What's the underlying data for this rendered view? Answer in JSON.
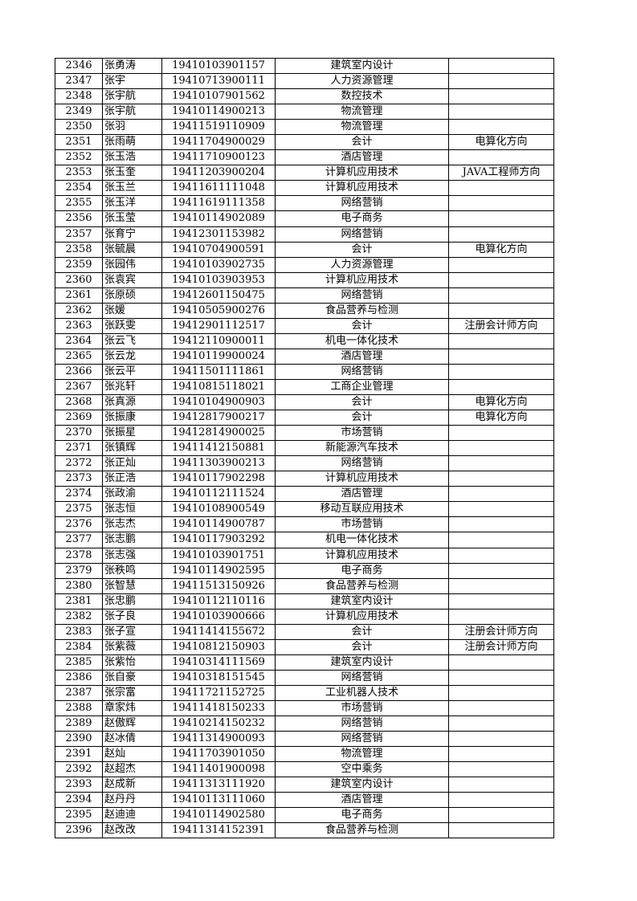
{
  "table": {
    "rows": [
      [
        "2346",
        "张勇涛",
        "19410103901157",
        "建筑室内设计",
        ""
      ],
      [
        "2347",
        "张宇",
        "19410713900111",
        "人力资源管理",
        ""
      ],
      [
        "2348",
        "张宇航",
        "19410107901562",
        "数控技术",
        ""
      ],
      [
        "2349",
        "张宇航",
        "19410114900213",
        "物流管理",
        ""
      ],
      [
        "2350",
        "张羽",
        "19411519110909",
        "物流管理",
        ""
      ],
      [
        "2351",
        "张雨萌",
        "19411704900029",
        "会计",
        "电算化方向"
      ],
      [
        "2352",
        "张玉浩",
        "19411710900123",
        "酒店管理",
        ""
      ],
      [
        "2353",
        "张玉奎",
        "19411203900204",
        "计算机应用技术",
        "JAVA工程师方向"
      ],
      [
        "2354",
        "张玉兰",
        "19411611111048",
        "计算机应用技术",
        ""
      ],
      [
        "2355",
        "张玉洋",
        "19411619111358",
        "网络营销",
        ""
      ],
      [
        "2356",
        "张玉莹",
        "19410114902089",
        "电子商务",
        ""
      ],
      [
        "2357",
        "张育宁",
        "19412301153982",
        "网络营销",
        ""
      ],
      [
        "2358",
        "张毓晨",
        "19410704900591",
        "会计",
        "电算化方向"
      ],
      [
        "2359",
        "张园伟",
        "19410103902735",
        "人力资源管理",
        ""
      ],
      [
        "2360",
        "张袁宾",
        "19410103903953",
        "计算机应用技术",
        ""
      ],
      [
        "2361",
        "张原硕",
        "19412601150475",
        "网络营销",
        ""
      ],
      [
        "2362",
        "张媛",
        "19410505900276",
        "食品营养与检测",
        ""
      ],
      [
        "2363",
        "张跃雯",
        "19412901112517",
        "会计",
        "注册会计师方向"
      ],
      [
        "2364",
        "张云飞",
        "19412110900011",
        "机电一体化技术",
        ""
      ],
      [
        "2365",
        "张云龙",
        "19410119900024",
        "酒店管理",
        ""
      ],
      [
        "2366",
        "张云平",
        "19411501111861",
        "网络营销",
        ""
      ],
      [
        "2367",
        "张兆轩",
        "19410815118021",
        "工商企业管理",
        ""
      ],
      [
        "2368",
        "张真源",
        "19410104900903",
        "会计",
        "电算化方向"
      ],
      [
        "2369",
        "张振康",
        "19412817900217",
        "会计",
        "电算化方向"
      ],
      [
        "2370",
        "张振星",
        "19412814900025",
        "市场营销",
        ""
      ],
      [
        "2371",
        "张镇辉",
        "19411412150881",
        "新能源汽车技术",
        ""
      ],
      [
        "2372",
        "张正灿",
        "19411303900213",
        "网络营销",
        ""
      ],
      [
        "2373",
        "张正浩",
        "19410117902298",
        "计算机应用技术",
        ""
      ],
      [
        "2374",
        "张政渝",
        "19410112111524",
        "酒店管理",
        ""
      ],
      [
        "2375",
        "张志恒",
        "19410108900549",
        "移动互联应用技术",
        ""
      ],
      [
        "2376",
        "张志杰",
        "19410114900787",
        "市场营销",
        ""
      ],
      [
        "2377",
        "张志鹏",
        "19410117903292",
        "机电一体化技术",
        ""
      ],
      [
        "2378",
        "张志强",
        "19410103901751",
        "计算机应用技术",
        ""
      ],
      [
        "2379",
        "张秩鸣",
        "19410114902595",
        "电子商务",
        ""
      ],
      [
        "2380",
        "张智慧",
        "19411513150926",
        "食品营养与检测",
        ""
      ],
      [
        "2381",
        "张忠鹏",
        "19410112110116",
        "建筑室内设计",
        ""
      ],
      [
        "2382",
        "张子良",
        "19410103900666",
        "计算机应用技术",
        ""
      ],
      [
        "2383",
        "张子宣",
        "19411414155672",
        "会计",
        "注册会计师方向"
      ],
      [
        "2384",
        "张紫薇",
        "19410812150903",
        "会计",
        "注册会计师方向"
      ],
      [
        "2385",
        "张紫怡",
        "19410314111569",
        "建筑室内设计",
        ""
      ],
      [
        "2386",
        "张自豪",
        "19410318151545",
        "网络营销",
        ""
      ],
      [
        "2387",
        "张宗富",
        "19411721152725",
        "工业机器人技术",
        ""
      ],
      [
        "2388",
        "章家炜",
        "19411418150233",
        "市场营销",
        ""
      ],
      [
        "2389",
        "赵傲辉",
        "19410214150232",
        "网络营销",
        ""
      ],
      [
        "2390",
        "赵冰倩",
        "19411314900093",
        "网络营销",
        ""
      ],
      [
        "2391",
        "赵灿",
        "19411703901050",
        "物流管理",
        ""
      ],
      [
        "2392",
        "赵超杰",
        "19411401900098",
        "空中乘务",
        ""
      ],
      [
        "2393",
        "赵成新",
        "19411313111920",
        "建筑室内设计",
        ""
      ],
      [
        "2394",
        "赵丹丹",
        "19410113111060",
        "酒店管理",
        ""
      ],
      [
        "2395",
        "赵迪迪",
        "19410114902580",
        "电子商务",
        ""
      ],
      [
        "2396",
        "赵改改",
        "19411314152391",
        "食品营养与检测",
        ""
      ]
    ]
  }
}
